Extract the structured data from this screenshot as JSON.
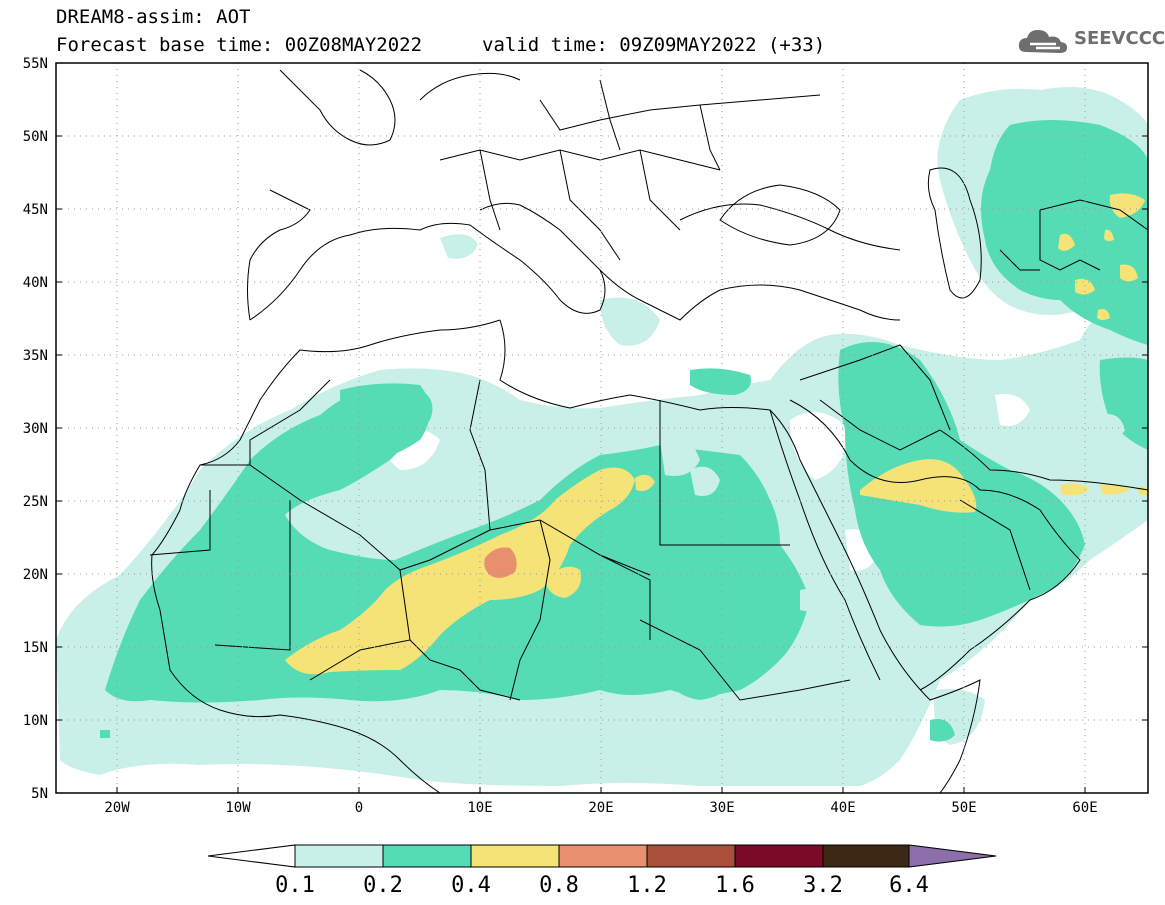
{
  "header": {
    "model": "DREAM8-assim: AOT",
    "base_time": "Forecast base time: 00Z08MAY2022",
    "valid_time": "valid time: 09Z09MAY2022 (+33)",
    "logo_text": "SEEVCCC",
    "logo_icon": "cloud-icon"
  },
  "map": {
    "region": "Northern Africa, Middle East, Southern Europe",
    "lon_range": [
      -25,
      65
    ],
    "lat_range": [
      5,
      55
    ],
    "lat_ticks": [
      "55N",
      "50N",
      "45N",
      "40N",
      "35N",
      "30N",
      "25N",
      "20N",
      "15N",
      "10N",
      "5N"
    ],
    "lon_ticks": [
      "20W",
      "10W",
      "0",
      "10E",
      "20E",
      "30E",
      "40E",
      "50E",
      "60E"
    ],
    "grid": true,
    "grid_style": "dotted"
  },
  "colorbar": {
    "labels": [
      "0.1",
      "0.2",
      "0.4",
      "0.8",
      "1.2",
      "1.6",
      "3.2",
      "6.4"
    ],
    "colors": [
      "#ffffff",
      "#c8f0e8",
      "#55dcb4",
      "#f5e378",
      "#e8906e",
      "#a8503a",
      "#7a0a28",
      "#3c2814",
      "#8c6eaa"
    ]
  }
}
